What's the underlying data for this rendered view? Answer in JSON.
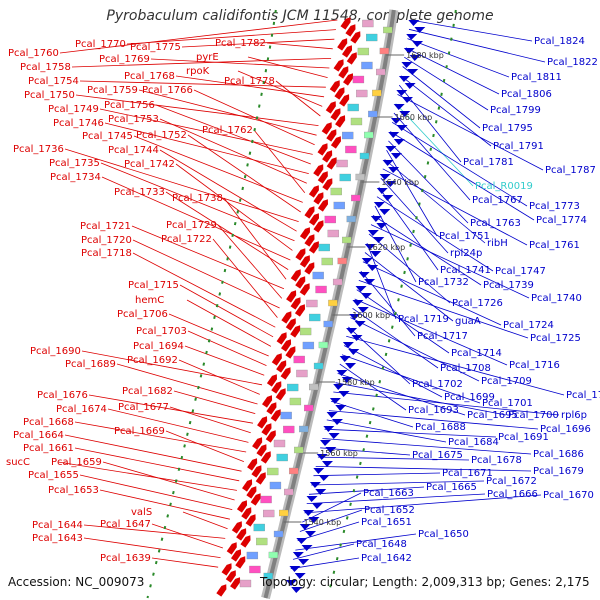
{
  "title": "Pyrobaculum calidifontis JCM 11548, complete genome",
  "accession": "Accession: NC_009073",
  "summary": "Topology: circular; Length: 2,009,313 bp; Genes: 2,175",
  "colors": {
    "reverse_strand": "#dd0000",
    "forward_strand": "#0000cc",
    "rna": "#33cccc",
    "backbone": "#808080"
  },
  "kbp_ticks": [
    "1680 kbp",
    "1660 kbp",
    "1640 kbp",
    "1620 kbp",
    "1600 kbp",
    "1580 kbp",
    "1560 kbp",
    "1540 kbp"
  ],
  "left_labels": [
    "Pcal_1760",
    "Pcal_1770",
    "Pcal_1775",
    "Pcal_1782",
    "Pcal_1758",
    "Pcal_1769",
    "pyrE",
    "Pcal_1754",
    "Pcal_1768",
    "rpoK",
    "Pcal_1778",
    "Pcal_1750",
    "Pcal_1759",
    "Pcal_1766",
    "Pcal_1749",
    "Pcal_1756",
    "Pcal_1746",
    "Pcal_1753",
    "Pcal_1762",
    "Pcal_1745",
    "Pcal_1752",
    "Pcal_1736",
    "Pcal_1744",
    "Pcal_1735",
    "Pcal_1742",
    "Pcal_1734",
    "Pcal_1733",
    "Pcal_1738",
    "Pcal_1721",
    "Pcal_1729",
    "Pcal_1720",
    "Pcal_1722",
    "Pcal_1718",
    "Pcal_1715",
    "hemC",
    "Pcal_1706",
    "Pcal_1703",
    "Pcal_1694",
    "Pcal_1690",
    "Pcal_1692",
    "Pcal_1689",
    "Pcal_1682",
    "Pcal_1676",
    "Pcal_1677",
    "Pcal_1674",
    "Pcal_1668",
    "Pcal_1669",
    "Pcal_1664",
    "Pcal_1661",
    "sucC",
    "Pcal_1659",
    "Pcal_1655",
    "Pcal_1653",
    "valS",
    "Pcal_1644",
    "Pcal_1647",
    "Pcal_1643",
    "Pcal_1639"
  ],
  "right_labels": [
    "Pcal_1824",
    "Pcal_1822",
    "Pcal_1811",
    "Pcal_1806",
    "Pcal_1799",
    "Pcal_1795",
    "Pcal_1791",
    "Pcal_1781",
    "Pcal_1787",
    "Pcal_R0019",
    "Pcal_1767",
    "Pcal_1773",
    "Pcal_1774",
    "Pcal_1763",
    "Pcal_1751",
    "ribH",
    "Pcal_1761",
    "rpl24p",
    "Pcal_1741",
    "Pcal_1747",
    "Pcal_1732",
    "Pcal_1739",
    "Pcal_1740",
    "Pcal_1726",
    "Pcal_1719",
    "guaA",
    "Pcal_1724",
    "Pcal_1717",
    "Pcal_1725",
    "Pcal_1714",
    "Pcal_1716",
    "Pcal_1708",
    "Pcal_1709",
    "Pcal_1702",
    "Pcal_1710",
    "Pcal_1699",
    "Pcal_1701",
    "Pcal_1693",
    "Pcal_1695",
    "Pcal_1700",
    "rpl6p",
    "Pcal_1688",
    "Pcal_1696",
    "Pcal_1684",
    "Pcal_1691",
    "Pcal_1686",
    "Pcal_1675",
    "Pcal_1678",
    "Pcal_1679",
    "Pcal_1671",
    "Pcal_1672",
    "Pcal_1665",
    "Pcal_1666",
    "Pcal_1670",
    "Pcal_1663",
    "Pcal_1652",
    "Pcal_1651",
    "Pcal_1650",
    "Pcal_1648",
    "Pcal_1642"
  ]
}
